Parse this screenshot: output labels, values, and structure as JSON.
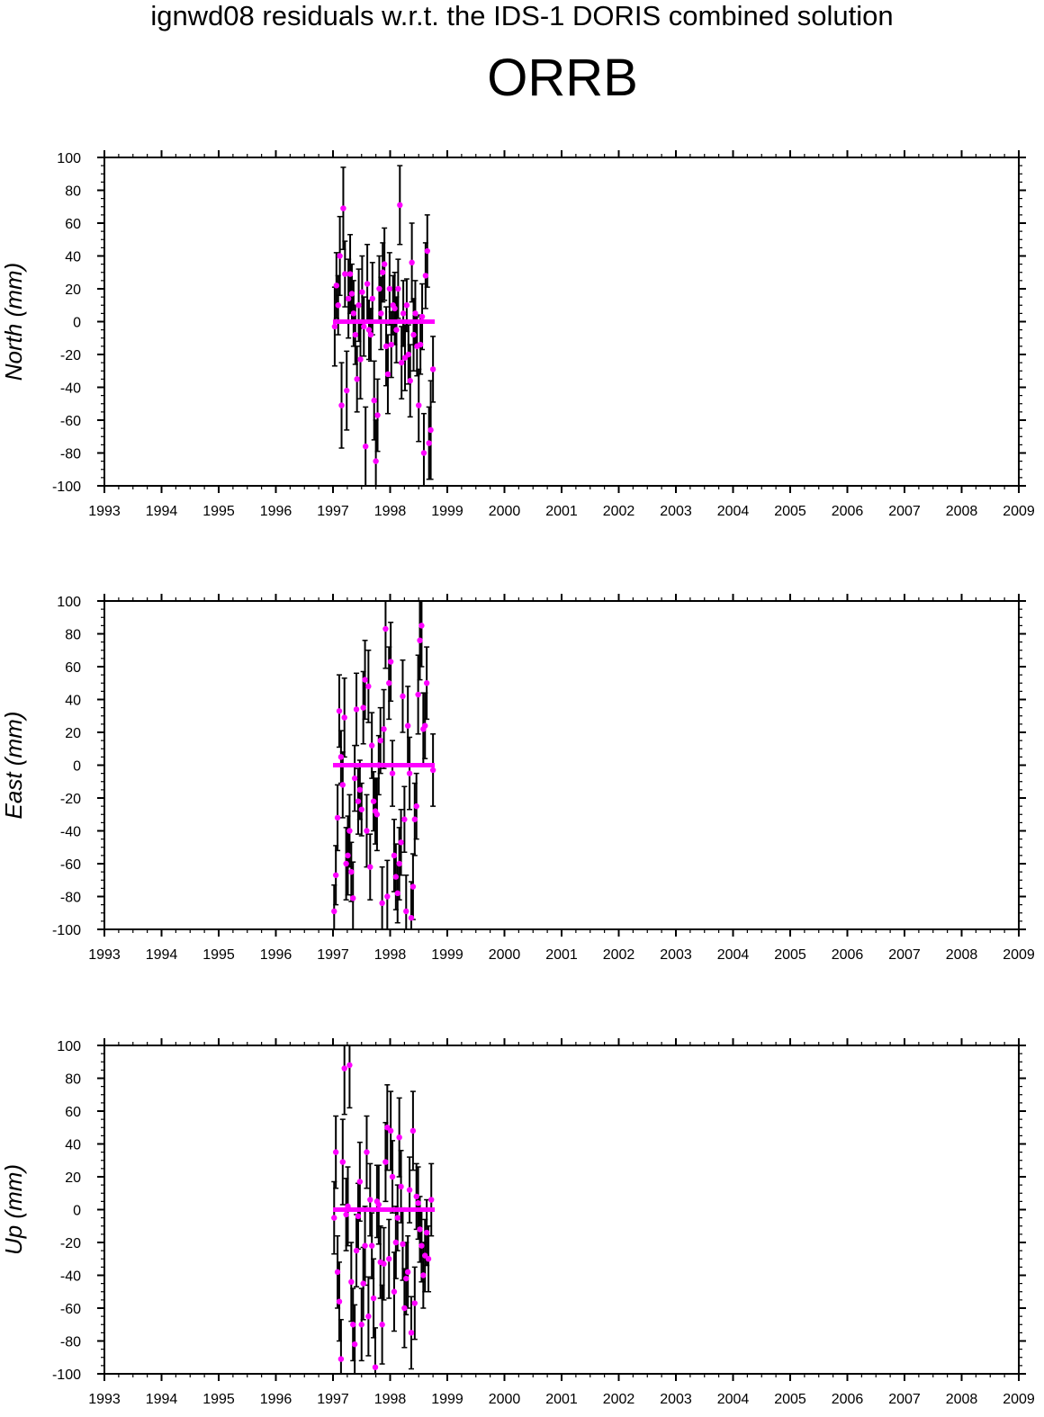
{
  "supertitle": "ignwd08 residuals w.r.t. the IDS-1 DORIS combined solution",
  "station": "ORRB",
  "colors": {
    "points": "#ff00ff",
    "mean_line": "#ff00ff",
    "error_bars": "#000000",
    "axes": "#000000"
  },
  "chart_data": [
    {
      "type": "scatter",
      "ylabel": "North (mm)",
      "xlim": [
        1993,
        2009
      ],
      "ylim": [
        -100,
        100
      ],
      "xticks": [
        "1993",
        "1994",
        "1995",
        "1996",
        "1997",
        "1998",
        "1999",
        "2000",
        "2001",
        "2002",
        "2003",
        "2004",
        "2005",
        "2006",
        "2007",
        "2008",
        "2009"
      ],
      "yticks": [
        "100",
        "80",
        "60",
        "40",
        "20",
        "0",
        "-20",
        "-40",
        "-60",
        "-80",
        "-100"
      ],
      "mean_line": {
        "x": [
          1997.0,
          1998.78
        ],
        "y": 0
      },
      "points": [
        {
          "x": 1997.03,
          "y": -3,
          "err": 24
        },
        {
          "x": 1997.06,
          "y": 22,
          "err": 20
        },
        {
          "x": 1997.09,
          "y": 10,
          "err": 18
        },
        {
          "x": 1997.12,
          "y": 40,
          "err": 24
        },
        {
          "x": 1997.15,
          "y": -51,
          "err": 26
        },
        {
          "x": 1997.18,
          "y": 69,
          "err": 25
        },
        {
          "x": 1997.21,
          "y": 29,
          "err": 20
        },
        {
          "x": 1997.24,
          "y": -42,
          "err": 24
        },
        {
          "x": 1997.27,
          "y": 14,
          "err": 24
        },
        {
          "x": 1997.3,
          "y": 29,
          "err": 24
        },
        {
          "x": 1997.33,
          "y": 17,
          "err": 18
        },
        {
          "x": 1997.36,
          "y": 5,
          "err": 20
        },
        {
          "x": 1997.39,
          "y": -8,
          "err": 18
        },
        {
          "x": 1997.42,
          "y": -35,
          "err": 20
        },
        {
          "x": 1997.45,
          "y": 10,
          "err": 22
        },
        {
          "x": 1997.48,
          "y": -23,
          "err": 24
        },
        {
          "x": 1997.51,
          "y": 18,
          "err": 22
        },
        {
          "x": 1997.54,
          "y": -3,
          "err": 18
        },
        {
          "x": 1997.57,
          "y": -76,
          "err": 24
        },
        {
          "x": 1997.6,
          "y": 23,
          "err": 24
        },
        {
          "x": 1997.63,
          "y": -5,
          "err": 18
        },
        {
          "x": 1997.66,
          "y": -8,
          "err": 16
        },
        {
          "x": 1997.69,
          "y": 14,
          "err": 22
        },
        {
          "x": 1997.72,
          "y": -48,
          "err": 24
        },
        {
          "x": 1997.75,
          "y": -85,
          "err": 25
        },
        {
          "x": 1997.78,
          "y": -57,
          "err": 22
        },
        {
          "x": 1997.81,
          "y": 20,
          "err": 20
        },
        {
          "x": 1997.84,
          "y": 5,
          "err": 22
        },
        {
          "x": 1997.87,
          "y": 30,
          "err": 18
        },
        {
          "x": 1997.9,
          "y": 35,
          "err": 22
        },
        {
          "x": 1997.93,
          "y": -15,
          "err": 24
        },
        {
          "x": 1997.96,
          "y": -32,
          "err": 24
        },
        {
          "x": 1997.99,
          "y": 20,
          "err": 22
        },
        {
          "x": 1998.02,
          "y": -14,
          "err": 20
        },
        {
          "x": 1998.05,
          "y": 10,
          "err": 18
        },
        {
          "x": 1998.08,
          "y": 8,
          "err": 22
        },
        {
          "x": 1998.11,
          "y": -5,
          "err": 20
        },
        {
          "x": 1998.14,
          "y": 20,
          "err": 18
        },
        {
          "x": 1998.17,
          "y": 71,
          "err": 24
        },
        {
          "x": 1998.2,
          "y": -25,
          "err": 22
        },
        {
          "x": 1998.23,
          "y": 5,
          "err": 20
        },
        {
          "x": 1998.26,
          "y": -22,
          "err": 20
        },
        {
          "x": 1998.29,
          "y": 10,
          "err": 16
        },
        {
          "x": 1998.32,
          "y": -20,
          "err": 18
        },
        {
          "x": 1998.35,
          "y": -36,
          "err": 22
        },
        {
          "x": 1998.38,
          "y": 36,
          "err": 24
        },
        {
          "x": 1998.41,
          "y": -8,
          "err": 22
        },
        {
          "x": 1998.44,
          "y": 5,
          "err": 20
        },
        {
          "x": 1998.47,
          "y": -15,
          "err": 18
        },
        {
          "x": 1998.5,
          "y": -51,
          "err": 22
        },
        {
          "x": 1998.53,
          "y": -14,
          "err": 18
        },
        {
          "x": 1998.56,
          "y": 3,
          "err": 20
        },
        {
          "x": 1998.59,
          "y": -80,
          "err": 24
        },
        {
          "x": 1998.62,
          "y": 28,
          "err": 20
        },
        {
          "x": 1998.65,
          "y": 43,
          "err": 22
        },
        {
          "x": 1998.68,
          "y": -74,
          "err": 22
        },
        {
          "x": 1998.71,
          "y": -66,
          "err": 30
        },
        {
          "x": 1998.75,
          "y": -29,
          "err": 20
        }
      ]
    },
    {
      "type": "scatter",
      "ylabel": "East (mm)",
      "xlim": [
        1993,
        2009
      ],
      "ylim": [
        -100,
        100
      ],
      "xticks": [
        "1993",
        "1994",
        "1995",
        "1996",
        "1997",
        "1998",
        "1999",
        "2000",
        "2001",
        "2002",
        "2003",
        "2004",
        "2005",
        "2006",
        "2007",
        "2008",
        "2009"
      ],
      "yticks": [
        "100",
        "80",
        "60",
        "40",
        "20",
        "0",
        "-20",
        "-40",
        "-60",
        "-80",
        "-100"
      ],
      "mean_line": {
        "x": [
          1997.0,
          1998.78
        ],
        "y": 0
      },
      "points": [
        {
          "x": 1997.02,
          "y": -89,
          "err": 16
        },
        {
          "x": 1997.05,
          "y": -67,
          "err": 18
        },
        {
          "x": 1997.08,
          "y": -32,
          "err": 20
        },
        {
          "x": 1997.11,
          "y": 33,
          "err": 22
        },
        {
          "x": 1997.14,
          "y": 5,
          "err": 16
        },
        {
          "x": 1997.17,
          "y": -12,
          "err": 20
        },
        {
          "x": 1997.2,
          "y": 29,
          "err": 24
        },
        {
          "x": 1997.23,
          "y": -60,
          "err": 22
        },
        {
          "x": 1997.26,
          "y": -55,
          "err": 24
        },
        {
          "x": 1997.29,
          "y": -40,
          "err": 22
        },
        {
          "x": 1997.32,
          "y": -65,
          "err": 18
        },
        {
          "x": 1997.35,
          "y": -81,
          "err": 22
        },
        {
          "x": 1997.38,
          "y": -8,
          "err": 20
        },
        {
          "x": 1997.41,
          "y": 34,
          "err": 22
        },
        {
          "x": 1997.44,
          "y": -22,
          "err": 20
        },
        {
          "x": 1997.47,
          "y": -15,
          "err": 18
        },
        {
          "x": 1997.5,
          "y": -27,
          "err": 16
        },
        {
          "x": 1997.53,
          "y": 35,
          "err": 22
        },
        {
          "x": 1997.56,
          "y": 52,
          "err": 24
        },
        {
          "x": 1997.59,
          "y": -40,
          "err": 22
        },
        {
          "x": 1997.62,
          "y": 48,
          "err": 22
        },
        {
          "x": 1997.65,
          "y": -62,
          "err": 20
        },
        {
          "x": 1997.68,
          "y": 12,
          "err": 20
        },
        {
          "x": 1997.71,
          "y": -22,
          "err": 18
        },
        {
          "x": 1997.74,
          "y": -28,
          "err": 20
        },
        {
          "x": 1997.77,
          "y": -30,
          "err": 22
        },
        {
          "x": 1997.8,
          "y": 0,
          "err": 18
        },
        {
          "x": 1997.83,
          "y": 15,
          "err": 20
        },
        {
          "x": 1997.86,
          "y": -84,
          "err": 22
        },
        {
          "x": 1997.89,
          "y": 22,
          "err": 24
        },
        {
          "x": 1997.92,
          "y": 83,
          "err": 24
        },
        {
          "x": 1997.95,
          "y": -80,
          "err": 22
        },
        {
          "x": 1997.98,
          "y": 50,
          "err": 22
        },
        {
          "x": 1998.01,
          "y": 63,
          "err": 24
        },
        {
          "x": 1998.04,
          "y": -5,
          "err": 20
        },
        {
          "x": 1998.07,
          "y": -55,
          "err": 22
        },
        {
          "x": 1998.1,
          "y": -68,
          "err": 20
        },
        {
          "x": 1998.13,
          "y": -78,
          "err": 18
        },
        {
          "x": 1998.16,
          "y": -60,
          "err": 22
        },
        {
          "x": 1998.19,
          "y": -47,
          "err": 20
        },
        {
          "x": 1998.22,
          "y": 42,
          "err": 22
        },
        {
          "x": 1998.25,
          "y": -33,
          "err": 20
        },
        {
          "x": 1998.28,
          "y": -89,
          "err": 22
        },
        {
          "x": 1998.31,
          "y": 24,
          "err": 24
        },
        {
          "x": 1998.34,
          "y": -5,
          "err": 22
        },
        {
          "x": 1998.37,
          "y": -93,
          "err": 22
        },
        {
          "x": 1998.4,
          "y": -74,
          "err": 20
        },
        {
          "x": 1998.43,
          "y": -33,
          "err": 22
        },
        {
          "x": 1998.46,
          "y": -25,
          "err": 20
        },
        {
          "x": 1998.49,
          "y": 43,
          "err": 24
        },
        {
          "x": 1998.52,
          "y": 76,
          "err": 24
        },
        {
          "x": 1998.55,
          "y": 85,
          "err": 25
        },
        {
          "x": 1998.58,
          "y": 22,
          "err": 22
        },
        {
          "x": 1998.61,
          "y": 24,
          "err": 20
        },
        {
          "x": 1998.64,
          "y": 50,
          "err": 22
        },
        {
          "x": 1998.75,
          "y": -3,
          "err": 22
        }
      ]
    },
    {
      "type": "scatter",
      "ylabel": "Up (mm)",
      "xlim": [
        1993,
        2009
      ],
      "ylim": [
        -100,
        100
      ],
      "xticks": [
        "1993",
        "1994",
        "1995",
        "1996",
        "1997",
        "1998",
        "1999",
        "2000",
        "2001",
        "2002",
        "2003",
        "2004",
        "2005",
        "2006",
        "2007",
        "2008",
        "2009"
      ],
      "yticks": [
        "100",
        "80",
        "60",
        "40",
        "20",
        "0",
        "-20",
        "-40",
        "-60",
        "-80",
        "-100"
      ],
      "mean_line": {
        "x": [
          1997.0,
          1998.78
        ],
        "y": 0
      },
      "points": [
        {
          "x": 1997.02,
          "y": -5,
          "err": 22
        },
        {
          "x": 1997.05,
          "y": 35,
          "err": 22
        },
        {
          "x": 1997.08,
          "y": -38,
          "err": 22
        },
        {
          "x": 1997.11,
          "y": -56,
          "err": 24
        },
        {
          "x": 1997.14,
          "y": -91,
          "err": 24
        },
        {
          "x": 1997.17,
          "y": 29,
          "err": 26
        },
        {
          "x": 1997.2,
          "y": 86,
          "err": 28
        },
        {
          "x": 1997.23,
          "y": -3,
          "err": 22
        },
        {
          "x": 1997.26,
          "y": 2,
          "err": 24
        },
        {
          "x": 1997.29,
          "y": 88,
          "err": 26
        },
        {
          "x": 1997.32,
          "y": -44,
          "err": 24
        },
        {
          "x": 1997.35,
          "y": -70,
          "err": 22
        },
        {
          "x": 1997.38,
          "y": -82,
          "err": 24
        },
        {
          "x": 1997.41,
          "y": -25,
          "err": 22
        },
        {
          "x": 1997.44,
          "y": -4,
          "err": 20
        },
        {
          "x": 1997.47,
          "y": 17,
          "err": 24
        },
        {
          "x": 1997.5,
          "y": -70,
          "err": 22
        },
        {
          "x": 1997.53,
          "y": -45,
          "err": 22
        },
        {
          "x": 1997.56,
          "y": -22,
          "err": 24
        },
        {
          "x": 1997.59,
          "y": 35,
          "err": 22
        },
        {
          "x": 1997.62,
          "y": -65,
          "err": 24
        },
        {
          "x": 1997.65,
          "y": 6,
          "err": 22
        },
        {
          "x": 1997.68,
          "y": -22,
          "err": 20
        },
        {
          "x": 1997.71,
          "y": -54,
          "err": 24
        },
        {
          "x": 1997.74,
          "y": -96,
          "err": 24
        },
        {
          "x": 1997.77,
          "y": 5,
          "err": 22
        },
        {
          "x": 1997.8,
          "y": 3,
          "err": 24
        },
        {
          "x": 1997.83,
          "y": -32,
          "err": 22
        },
        {
          "x": 1997.86,
          "y": -70,
          "err": 24
        },
        {
          "x": 1997.89,
          "y": -33,
          "err": 22
        },
        {
          "x": 1997.92,
          "y": 29,
          "err": 24
        },
        {
          "x": 1997.95,
          "y": 50,
          "err": 26
        },
        {
          "x": 1997.98,
          "y": -30,
          "err": 24
        },
        {
          "x": 1998.01,
          "y": 48,
          "err": 24
        },
        {
          "x": 1998.04,
          "y": 20,
          "err": 22
        },
        {
          "x": 1998.07,
          "y": -50,
          "err": 24
        },
        {
          "x": 1998.1,
          "y": -20,
          "err": 22
        },
        {
          "x": 1998.13,
          "y": -5,
          "err": 20
        },
        {
          "x": 1998.16,
          "y": 44,
          "err": 24
        },
        {
          "x": 1998.19,
          "y": 14,
          "err": 22
        },
        {
          "x": 1998.22,
          "y": -21,
          "err": 22
        },
        {
          "x": 1998.25,
          "y": -60,
          "err": 24
        },
        {
          "x": 1998.28,
          "y": -42,
          "err": 22
        },
        {
          "x": 1998.31,
          "y": -38,
          "err": 22
        },
        {
          "x": 1998.34,
          "y": 12,
          "err": 20
        },
        {
          "x": 1998.37,
          "y": -75,
          "err": 22
        },
        {
          "x": 1998.4,
          "y": 48,
          "err": 24
        },
        {
          "x": 1998.43,
          "y": -57,
          "err": 22
        },
        {
          "x": 1998.46,
          "y": 8,
          "err": 20
        },
        {
          "x": 1998.49,
          "y": 4,
          "err": 22
        },
        {
          "x": 1998.52,
          "y": -12,
          "err": 20
        },
        {
          "x": 1998.55,
          "y": -22,
          "err": 22
        },
        {
          "x": 1998.58,
          "y": -40,
          "err": 20
        },
        {
          "x": 1998.61,
          "y": -28,
          "err": 22
        },
        {
          "x": 1998.64,
          "y": -14,
          "err": 20
        },
        {
          "x": 1998.67,
          "y": -30,
          "err": 20
        },
        {
          "x": 1998.72,
          "y": 6,
          "err": 22
        }
      ]
    }
  ]
}
